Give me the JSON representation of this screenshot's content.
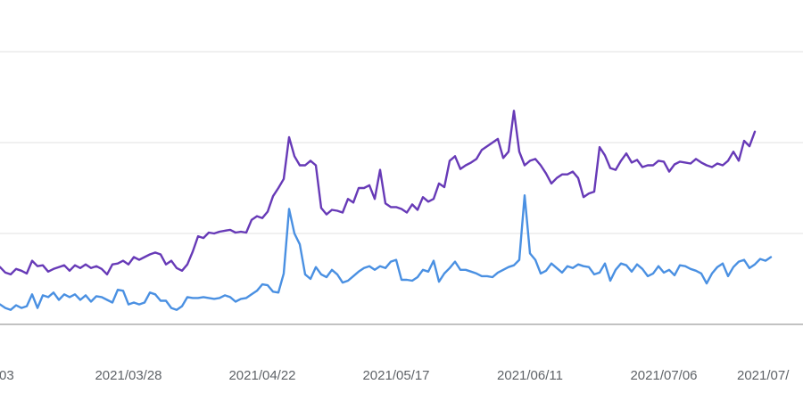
{
  "chart_data": {
    "type": "line",
    "title": "",
    "xlabel": "",
    "ylabel": "",
    "grid": true,
    "legend": "none",
    "ylim": [
      0,
      300
    ],
    "x_tick_labels": [
      "03",
      "2021/03/28",
      "2021/04/22",
      "2021/05/17",
      "2021/06/11",
      "2021/07/06",
      "2021/07/"
    ],
    "x_tick_index": [
      0,
      25,
      50,
      75,
      100,
      125,
      150
    ],
    "series": [
      {
        "color": "#673ab7",
        "values": [
          64,
          63,
          57,
          55,
          61,
          59,
          56,
          70,
          64,
          65,
          58,
          61,
          63,
          65,
          59,
          65,
          62,
          66,
          62,
          64,
          61,
          55,
          66,
          67,
          70,
          66,
          74,
          71,
          74,
          77,
          79,
          77,
          66,
          70,
          62,
          59,
          66,
          80,
          97,
          95,
          101,
          100,
          102,
          103,
          104,
          101,
          102,
          101,
          115,
          119,
          117,
          124,
          141,
          150,
          160,
          206,
          185,
          175,
          175,
          180,
          175,
          128,
          121,
          126,
          125,
          123,
          138,
          134,
          150,
          150,
          153,
          138,
          170,
          133,
          129,
          129,
          127,
          123,
          132,
          126,
          140,
          135,
          138,
          155,
          151,
          180,
          185,
          171,
          175,
          178,
          182,
          192,
          196,
          200,
          204,
          183,
          190,
          235,
          190,
          175,
          180,
          182,
          175,
          166,
          155,
          161,
          165,
          165,
          168,
          161,
          140,
          144,
          146,
          195,
          186,
          172,
          170,
          180,
          188,
          178,
          181,
          173,
          175,
          175,
          180,
          179,
          168,
          176,
          179,
          178,
          177,
          182,
          178,
          175,
          173,
          177,
          175,
          180,
          190,
          180,
          202,
          196,
          212
        ]
      },
      {
        "color": "#4a90e2",
        "values": [
          24,
          22,
          18,
          16,
          21,
          18,
          20,
          33,
          18,
          32,
          30,
          35,
          27,
          33,
          30,
          33,
          27,
          32,
          25,
          31,
          30,
          27,
          24,
          38,
          37,
          22,
          24,
          22,
          24,
          35,
          33,
          26,
          26,
          18,
          16,
          20,
          30,
          29,
          29,
          30,
          29,
          28,
          29,
          32,
          30,
          25,
          28,
          29,
          33,
          37,
          44,
          43,
          36,
          35,
          56,
          127,
          100,
          88,
          55,
          50,
          63,
          55,
          52,
          60,
          55,
          46,
          48,
          53,
          58,
          62,
          64,
          60,
          64,
          62,
          69,
          71,
          49,
          49,
          48,
          52,
          60,
          58,
          70,
          47,
          56,
          62,
          69,
          60,
          60,
          58,
          56,
          53,
          53,
          52,
          57,
          60,
          63,
          65,
          71,
          142,
          78,
          71,
          56,
          59,
          67,
          62,
          57,
          64,
          62,
          66,
          64,
          63,
          55,
          57,
          67,
          48,
          60,
          67,
          65,
          58,
          66,
          61,
          53,
          56,
          64,
          57,
          60,
          54,
          65,
          64,
          61,
          59,
          56,
          45,
          56,
          63,
          67,
          53,
          63,
          69,
          71,
          62,
          66,
          72,
          70,
          74
        ]
      }
    ]
  }
}
